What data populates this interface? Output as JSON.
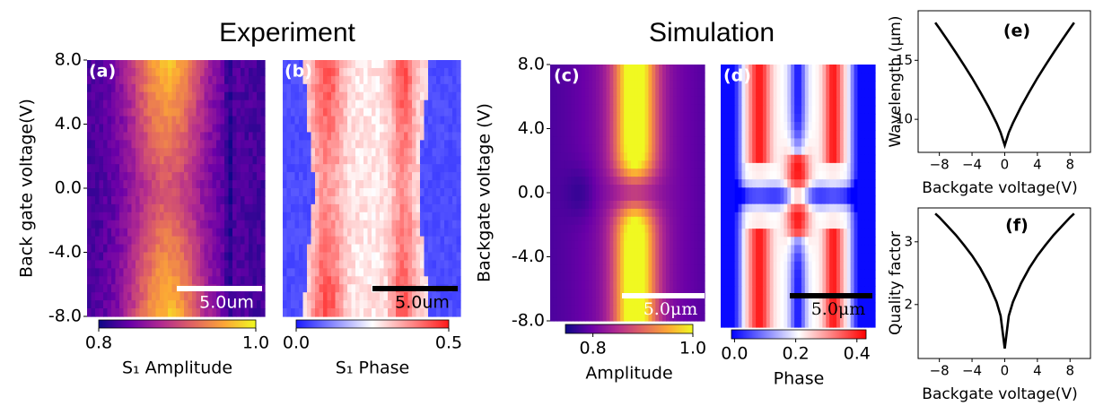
{
  "headings": [
    "Experiment",
    "Simulation"
  ],
  "chart_data": [
    {
      "type": "heatmap",
      "panel_label": "(a)",
      "y_label": "Back gate voltage(V)",
      "ylim": [
        -8,
        8
      ],
      "yticks": [
        {
          "value": 8,
          "label": "8.0"
        },
        {
          "value": 4,
          "label": "4.0"
        },
        {
          "value": 0,
          "label": "0.0"
        },
        {
          "value": -4,
          "label": "-4.0"
        },
        {
          "value": -8,
          "label": "-8.0"
        }
      ],
      "colormap": [
        "#0d0887",
        "#6a00a8",
        "#b12a90",
        "#e16462",
        "#fca636",
        "#f0f921"
      ],
      "colorbar_label": "S₁ Amplitude",
      "colorbar_lim": [
        0.8,
        1.0
      ],
      "colorbar_ticks": [
        {
          "value": 0.8,
          "label": "0.8"
        },
        {
          "value": 1,
          "label": "1.0"
        }
      ],
      "scale_bar": "5.0um",
      "scale_bar_color": "#ffffff"
    },
    {
      "type": "heatmap",
      "panel_label": "(b)",
      "colormap": [
        "#1a1aff",
        "#ffffff",
        "#ff1a1a"
      ],
      "colorbar_label": "S₁ Phase",
      "colorbar_lim": [
        0,
        0.5
      ],
      "colorbar_ticks": [
        {
          "value": 0,
          "label": "0.0"
        },
        {
          "value": 0.5,
          "label": "0.5"
        }
      ],
      "scale_bar": "5.0um",
      "scale_bar_color": "#000000"
    },
    {
      "type": "heatmap",
      "panel_label": "(c)",
      "y_label": "Backgate voltage (V)",
      "ylim": [
        -8,
        8
      ],
      "yticks": [
        {
          "value": 8,
          "label": "8.0"
        },
        {
          "value": 4,
          "label": "4.0"
        },
        {
          "value": 0,
          "label": "0.0"
        },
        {
          "value": -4,
          "label": "-4.0"
        },
        {
          "value": -8,
          "label": "-8.0"
        }
      ],
      "colormap": [
        "#0d0887",
        "#6a00a8",
        "#b12a90",
        "#e16462",
        "#fca636",
        "#f0f921"
      ],
      "colorbar_label": "Amplitude",
      "colorbar_lim": [
        0.745,
        1.0
      ],
      "colorbar_ticks": [
        {
          "value": 0.8,
          "label": "0.8"
        },
        {
          "value": 1,
          "label": "1.0"
        }
      ],
      "scale_bar": "5.0μm",
      "scale_bar_color": "#ffffff"
    },
    {
      "type": "heatmap",
      "panel_label": "(d)",
      "colormap": [
        "#0000ff",
        "#ffffff",
        "#ff0000"
      ],
      "colorbar_label": "Phase",
      "colorbar_lim": [
        -0.01,
        0.43
      ],
      "colorbar_ticks": [
        {
          "value": 0,
          "label": "0.0"
        },
        {
          "value": 0.2,
          "label": "0.2"
        },
        {
          "value": 0.4,
          "label": "0.4"
        }
      ],
      "scale_bar": "5.0μm",
      "scale_bar_color": "#000000"
    },
    {
      "type": "line",
      "panel_label": "(e)",
      "x_label": "Backgate voltage(V)",
      "y_label": "Wavelength (μm)",
      "xlim": [
        -10.6,
        10.5
      ],
      "xticks": [
        {
          "value": -8,
          "label": "−8"
        },
        {
          "value": -4,
          "label": "−4"
        },
        0,
        4,
        8
      ],
      "ylim": [
        7.2,
        19.2
      ],
      "yticks": [
        10,
        15
      ],
      "x": [
        -8.5,
        -8,
        -7,
        -6,
        -5,
        -4,
        -3,
        -2,
        -1,
        -0.5,
        0,
        0.5,
        1,
        2,
        3,
        4,
        5,
        6,
        7,
        8,
        8.5
      ],
      "color": "#000000",
      "values": [
        18.2,
        17.71,
        16.7,
        15.67,
        14.6,
        13.5,
        12.32,
        11.07,
        9.68,
        8.88,
        7.8,
        8.88,
        9.68,
        11.07,
        12.32,
        13.5,
        14.6,
        15.67,
        16.7,
        17.71,
        18.2
      ]
    },
    {
      "type": "line",
      "panel_label": "(f)",
      "x_label": "Backgate voltage(V)",
      "y_label": "Quality factor",
      "xlim": [
        -10.6,
        10.5
      ],
      "xticks": [
        {
          "value": -8,
          "label": "−8"
        },
        {
          "value": -4,
          "label": "−4"
        },
        0,
        4,
        8
      ],
      "ylim": [
        1.14,
        3.54
      ],
      "yticks": [
        2,
        3
      ],
      "x": [
        -8.5,
        -8,
        -7,
        -6,
        -5,
        -4,
        -3,
        -2,
        -1,
        -0.5,
        0,
        0.5,
        1,
        2,
        3,
        4,
        5,
        6,
        7,
        8,
        8.5
      ],
      "color": "#000000",
      "values": [
        3.45,
        3.39,
        3.25,
        3.11,
        2.95,
        2.78,
        2.58,
        2.34,
        2.04,
        1.82,
        1.3,
        1.82,
        2.04,
        2.34,
        2.58,
        2.78,
        2.95,
        3.11,
        3.25,
        3.39,
        3.45
      ]
    }
  ]
}
